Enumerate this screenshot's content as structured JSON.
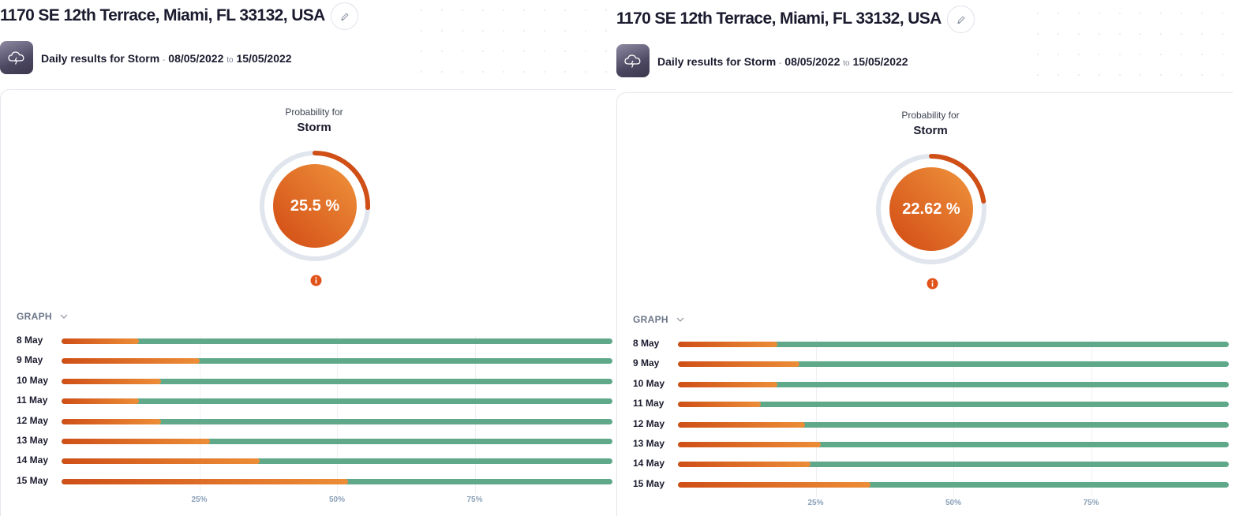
{
  "colors": {
    "accent_start": "#cf4f17",
    "accent_end": "#ec8d37",
    "bar_background": "#5fa88a",
    "gauge_track": "#e1e6ee"
  },
  "icons": {
    "edit": "pencil-icon",
    "hazard": "storm-cloud-icon",
    "info": "info-icon",
    "toggle": "chevron-down-icon"
  },
  "panels": [
    {
      "address": "1170 SE 12th Terrace, Miami, FL 33132, USA",
      "subtitle": {
        "prefix": "Daily results for Storm",
        "sep": "-",
        "from": "08/05/2022",
        "to_word": "to",
        "to": "15/05/2022"
      },
      "probability": {
        "label": "Probability for",
        "name": "Storm",
        "value": 25.5,
        "display": "25.5 %"
      },
      "graph_label": "GRAPH",
      "ticks": [
        "25%",
        "50%",
        "75%"
      ],
      "chart_data": {
        "type": "bar",
        "orientation": "horizontal",
        "categories": [
          "8 May",
          "9 May",
          "10 May",
          "11 May",
          "12 May",
          "13 May",
          "14 May",
          "15 May"
        ],
        "values": [
          14,
          25,
          18,
          14,
          18,
          27,
          36,
          52
        ],
        "xlim": [
          0,
          100
        ]
      }
    },
    {
      "address": "1170 SE 12th Terrace, Miami, FL 33132, USA",
      "subtitle": {
        "prefix": "Daily results for Storm",
        "sep": "-",
        "from": "08/05/2022",
        "to_word": "to",
        "to": "15/05/2022"
      },
      "probability": {
        "label": "Probability for",
        "name": "Storm",
        "value": 22.62,
        "display": "22.62 %"
      },
      "graph_label": "GRAPH",
      "ticks": [
        "25%",
        "50%",
        "75%"
      ],
      "chart_data": {
        "type": "bar",
        "orientation": "horizontal",
        "categories": [
          "8 May",
          "9 May",
          "10 May",
          "11 May",
          "12 May",
          "13 May",
          "14 May",
          "15 May"
        ],
        "values": [
          18,
          22,
          18,
          15,
          23,
          26,
          24,
          35
        ],
        "xlim": [
          0,
          100
        ]
      }
    }
  ]
}
